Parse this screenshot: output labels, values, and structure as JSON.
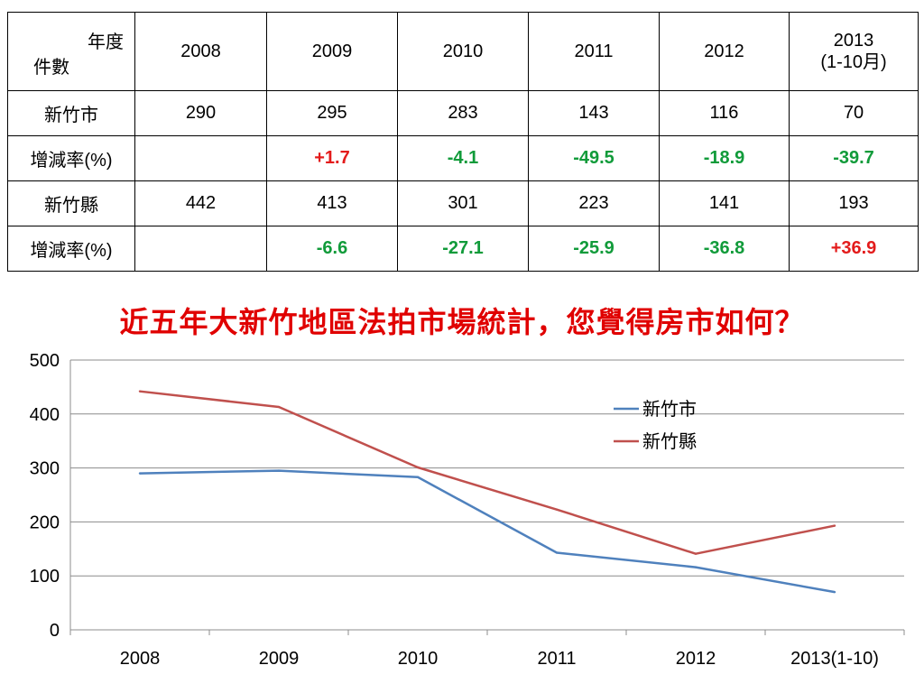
{
  "table": {
    "corner": {
      "top": "年度",
      "bottom": "件數"
    },
    "years": [
      {
        "line1": "2008",
        "line2": ""
      },
      {
        "line1": "2009",
        "line2": ""
      },
      {
        "line1": "2010",
        "line2": ""
      },
      {
        "line1": "2011",
        "line2": ""
      },
      {
        "line1": "2012",
        "line2": ""
      },
      {
        "line1": "2013",
        "line2": "(1-10月)"
      }
    ],
    "rows": [
      {
        "label": "新竹市",
        "cells": [
          {
            "text": "290",
            "tone": "plain"
          },
          {
            "text": "295",
            "tone": "plain"
          },
          {
            "text": "283",
            "tone": "plain"
          },
          {
            "text": "143",
            "tone": "plain"
          },
          {
            "text": "116",
            "tone": "plain"
          },
          {
            "text": "70",
            "tone": "plain"
          }
        ]
      },
      {
        "label": "增減率(%)",
        "cells": [
          {
            "text": "",
            "tone": "plain"
          },
          {
            "text": "+1.7",
            "tone": "pos"
          },
          {
            "text": "-4.1",
            "tone": "neg"
          },
          {
            "text": "-49.5",
            "tone": "neg"
          },
          {
            "text": "-18.9",
            "tone": "neg"
          },
          {
            "text": "-39.7",
            "tone": "neg"
          }
        ]
      },
      {
        "label": "新竹縣",
        "cells": [
          {
            "text": "442",
            "tone": "plain"
          },
          {
            "text": "413",
            "tone": "plain"
          },
          {
            "text": "301",
            "tone": "plain"
          },
          {
            "text": "223",
            "tone": "plain"
          },
          {
            "text": "141",
            "tone": "plain"
          },
          {
            "text": "193",
            "tone": "plain"
          }
        ]
      },
      {
        "label": "增減率(%)",
        "cells": [
          {
            "text": "",
            "tone": "plain"
          },
          {
            "text": "-6.6",
            "tone": "neg"
          },
          {
            "text": "-27.1",
            "tone": "neg"
          },
          {
            "text": "-25.9",
            "tone": "neg"
          },
          {
            "text": "-36.8",
            "tone": "neg"
          },
          {
            "text": "+36.9",
            "tone": "pos"
          }
        ]
      }
    ]
  },
  "question": "近五年大新竹地區法拍市場統計，您覺得房市如何？",
  "colors": {
    "positive": "#e31b1b",
    "negative": "#119b3a",
    "question": "#e00000"
  },
  "chart_data": {
    "type": "line",
    "categories": [
      "2008",
      "2009",
      "2010",
      "2011",
      "2012",
      "2013(1-10)"
    ],
    "series": [
      {
        "name": "新竹市",
        "color": "#4f81bd",
        "values": [
          290,
          295,
          283,
          143,
          116,
          70
        ]
      },
      {
        "name": "新竹縣",
        "color": "#c0504d",
        "values": [
          442,
          413,
          301,
          223,
          141,
          193
        ]
      }
    ],
    "title": "",
    "xlabel": "",
    "ylabel": "",
    "ylim": [
      0,
      500
    ],
    "yticks": [
      0,
      100,
      200,
      300,
      400,
      500
    ],
    "grid": true,
    "legend": "top-right"
  }
}
